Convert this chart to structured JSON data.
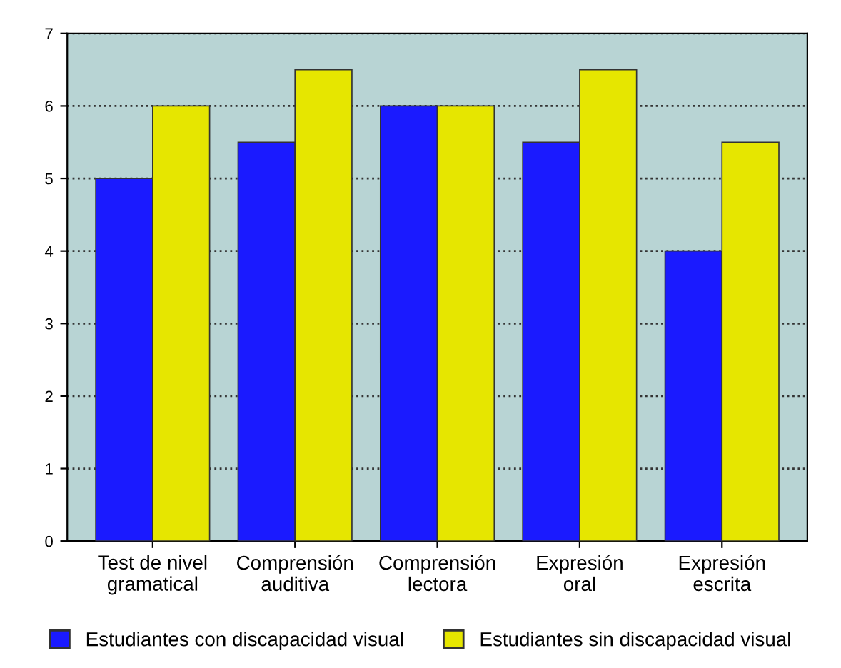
{
  "chart_data": {
    "type": "bar",
    "categories": [
      "Test de nivel\ngramatical",
      "Comprensión\nauditiva",
      "Comprensión\nlectora",
      "Expresión\noral",
      "Expresión\nescrita"
    ],
    "series": [
      {
        "name": "Estudiantes con discapacidad visual",
        "color": "#1a1aff",
        "values": [
          5,
          5.5,
          6,
          5.5,
          4
        ]
      },
      {
        "name": "Estudiantes sin discapacidad visual",
        "color": "#e6e600",
        "values": [
          6,
          6.5,
          6,
          6.5,
          5.5
        ]
      }
    ],
    "ylim": [
      0,
      7
    ],
    "yticks": [
      0,
      1,
      2,
      3,
      4,
      5,
      6,
      7
    ],
    "grid": "y",
    "legend": "bottom"
  }
}
